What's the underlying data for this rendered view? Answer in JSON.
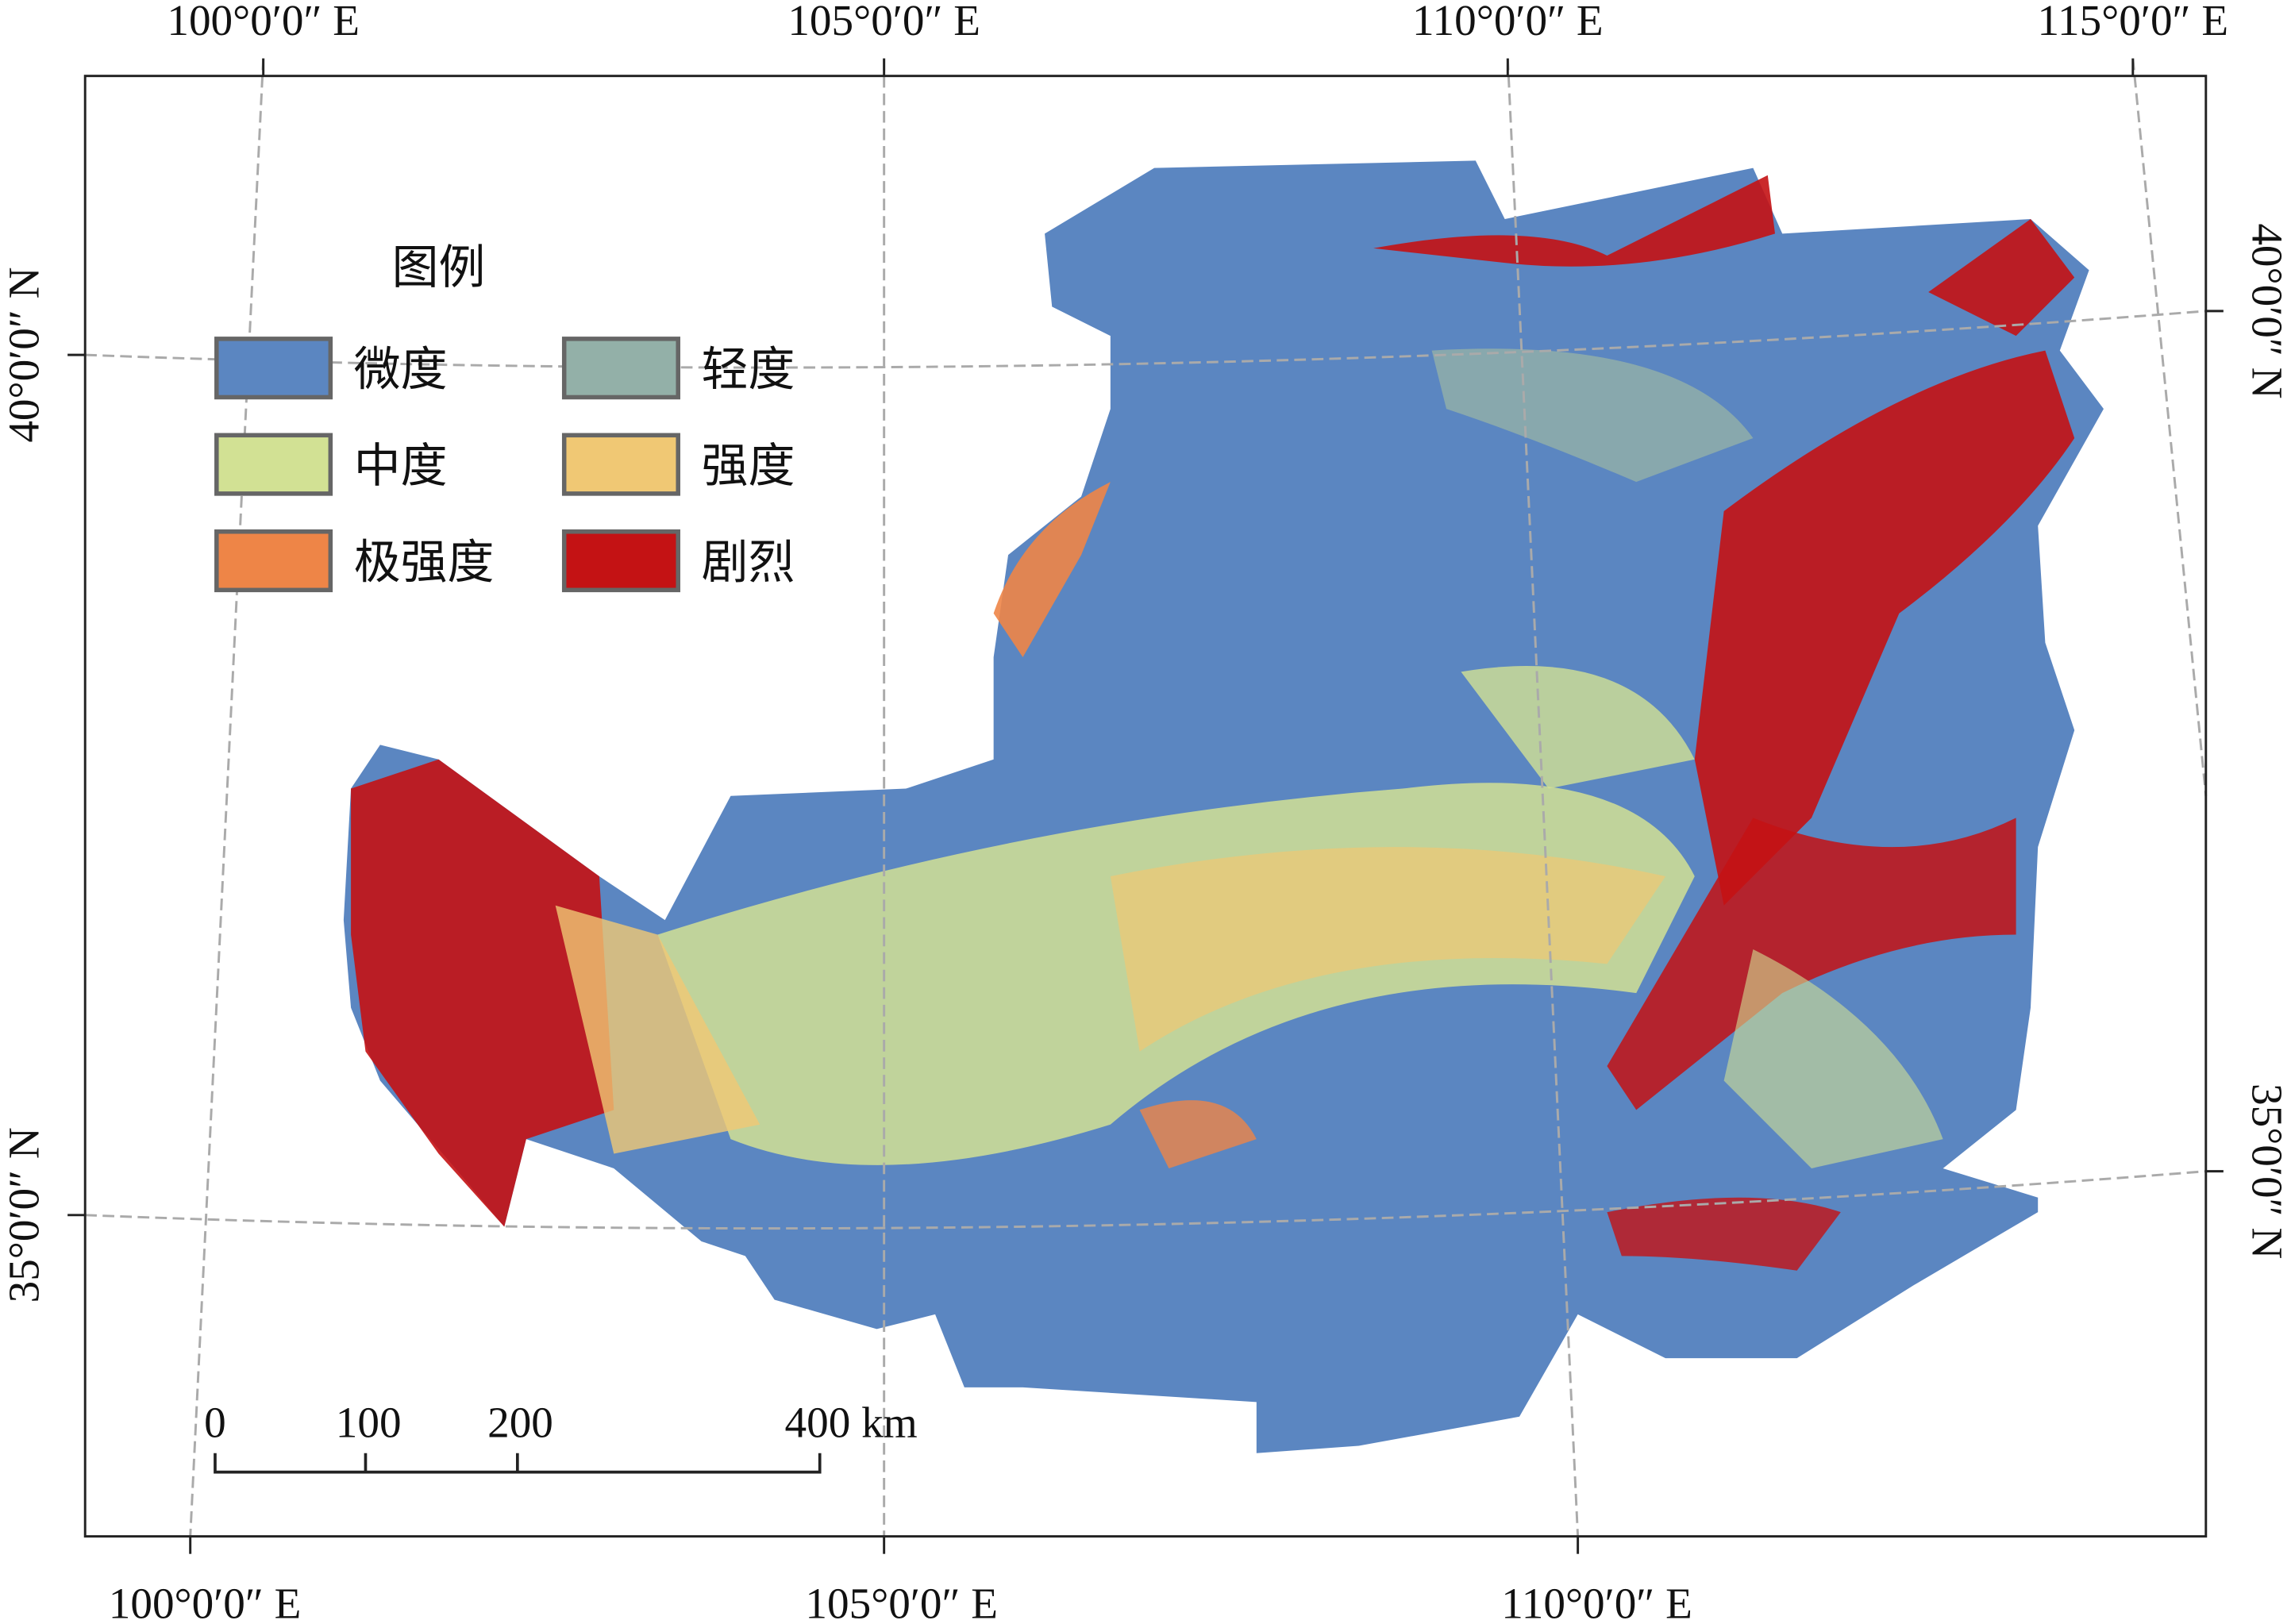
{
  "map": {
    "legend": {
      "title": "图例",
      "items": [
        {
          "name": "微度",
          "color": "#5b86c1"
        },
        {
          "name": "轻度",
          "color": "#93b0a8"
        },
        {
          "name": "中度",
          "color": "#d2e194"
        },
        {
          "name": "强度",
          "color": "#f0c874"
        },
        {
          "name": "极强度",
          "color": "#ee8547"
        },
        {
          "name": "剧烈",
          "color": "#c41214"
        }
      ]
    },
    "top_labels": [
      "100°0′0″ E",
      "105°0′0″ E",
      "110°0′0″ E",
      "115°0′0″ E"
    ],
    "bottom_labels": [
      "100°0′0″ E",
      "105°0′0″ E",
      "110°0′0″ E"
    ],
    "left_labels": [
      "40°0′0″ N",
      "35°0′0″ N"
    ],
    "right_labels": [
      "40°0′0″ N",
      "35°0′0″ N"
    ],
    "scale_bar": [
      "0",
      "100",
      "200",
      "400 km"
    ]
  }
}
